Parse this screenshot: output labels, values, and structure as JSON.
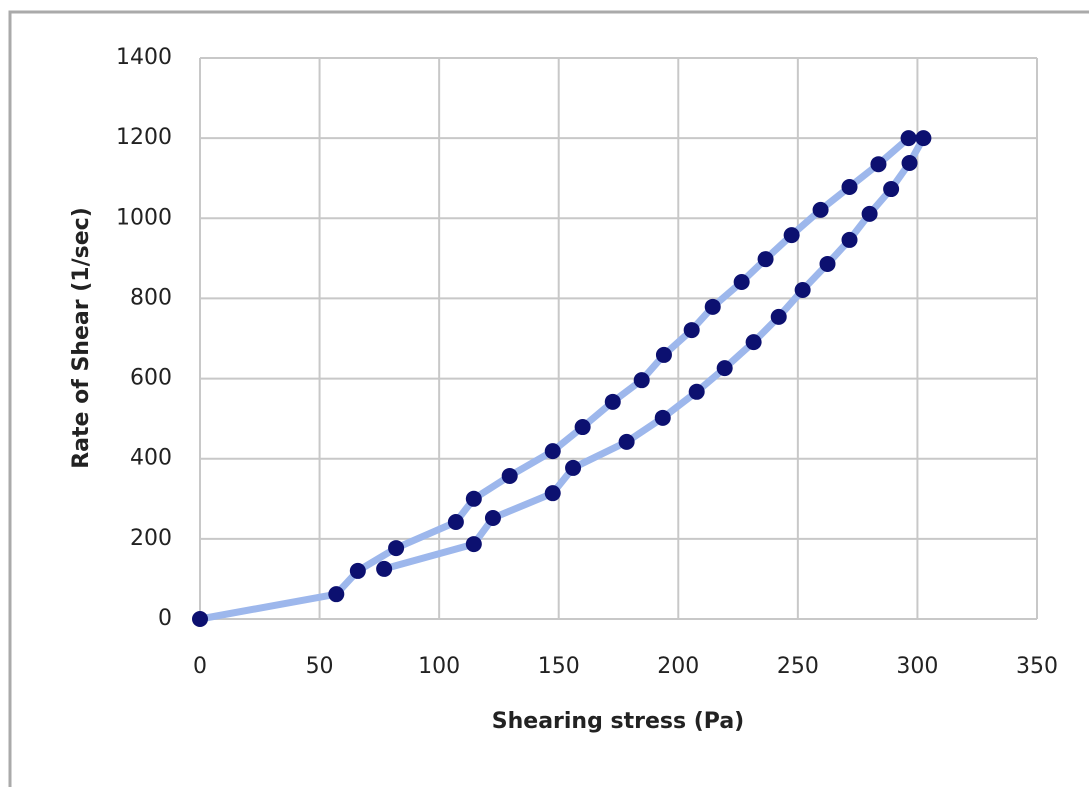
{
  "chart_data": {
    "type": "scatter",
    "xlabel": "Shearing stress (Pa)",
    "ylabel": "Rate of Shear (1/sec)",
    "x": [
      0,
      57,
      66,
      82,
      107,
      114.5,
      129.5,
      147.5,
      160,
      172.6,
      184.7,
      194,
      205.6,
      214.4,
      226.5,
      236.5,
      247.4,
      259.5,
      271.6,
      283.7,
      296.3,
      302.5,
      296.7,
      289,
      280,
      271.6,
      262.4,
      252,
      242,
      231.5,
      219.4,
      207.7,
      193.5,
      178.4,
      156,
      147.5,
      122.5,
      114.5,
      77
    ],
    "series": [
      {
        "name": "Rate of Shear",
        "color": "#0c1070",
        "line_color": "#9db7ec",
        "values": [
          0,
          62,
          120,
          177,
          242,
          300,
          357,
          419,
          479,
          542,
          596,
          659,
          721,
          779,
          841,
          898,
          958,
          1021,
          1078,
          1135,
          1200,
          1200,
          1138,
          1073,
          1011,
          946,
          886,
          821,
          754,
          691,
          626,
          567,
          502,
          442,
          377,
          314,
          252,
          187,
          125
        ]
      }
    ],
    "xlim": [
      0,
      350
    ],
    "xticks": [
      0,
      50,
      100,
      150,
      200,
      250,
      300,
      350
    ],
    "ylim": [
      0,
      1400
    ],
    "yticks": [
      0,
      200,
      400,
      600,
      800,
      1000,
      1200,
      1400
    ],
    "grid": true
  }
}
